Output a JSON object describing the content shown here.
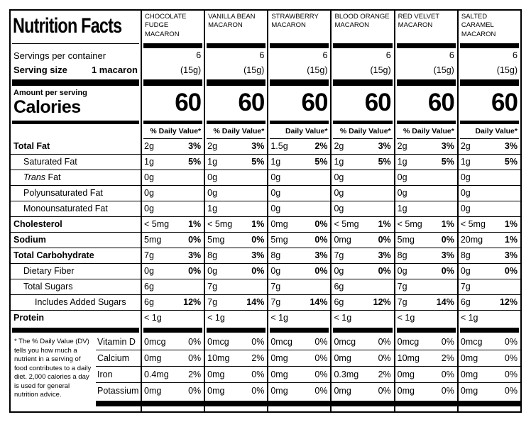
{
  "label": {
    "title": "Nutrition Facts",
    "servings_label": "Servings per container",
    "serving_size_label": "Serving size",
    "serving_size_value": "1 macaron",
    "amount_label": "Amount per serving",
    "calories_label": "Calories",
    "footnote": "* The % Daily Value (DV) tells you how much a nutrient in a serving of food contributes to a daily diet. 2,000 calories a day is used for general nutrition advice."
  },
  "nutrients": {
    "total_fat": "Total Fat",
    "sat_fat": "Saturated Fat",
    "trans_prefix": "Trans",
    "trans_suffix": " Fat",
    "poly_fat": "Polyunsaturated Fat",
    "mono_fat": "Monounsaturated Fat",
    "chol": "Cholesterol",
    "sodium": "Sodium",
    "carb": "Total Carbohydrate",
    "fiber": "Dietary Fiber",
    "sugars": "Total Sugars",
    "added_sugars": "Includes Added Sugars",
    "protein": "Protein",
    "vitd": "Vitamin D",
    "calcium": "Calcium",
    "iron": "Iron",
    "potassium": "Potassium"
  },
  "products": [
    {
      "name": "CHOCOLATE FUDGE MACARON",
      "servings": "6",
      "weight": "(15g)",
      "calories": "60",
      "dv_header": "% Daily Value*",
      "total_fat": "2g",
      "total_fat_dv": "3%",
      "sat_fat": "1g",
      "sat_fat_dv": "5%",
      "trans_fat": "0g",
      "poly_fat": "0g",
      "mono_fat": "0g",
      "chol": "< 5mg",
      "chol_dv": "1%",
      "sodium": "5mg",
      "sodium_dv": "0%",
      "carb": "7g",
      "carb_dv": "3%",
      "fiber": "0g",
      "fiber_dv": "0%",
      "sugars": "6g",
      "added_sugars": "6g",
      "added_sugars_dv": "12%",
      "protein": "< 1g",
      "vitd": "0mcg",
      "vitd_dv": "0%",
      "calcium": "0mg",
      "calcium_dv": "0%",
      "iron": "0.4mg",
      "iron_dv": "2%",
      "potassium": "0mg",
      "potassium_dv": "0%"
    },
    {
      "name": "VANILLA BEAN MACARON",
      "servings": "6",
      "weight": "(15g)",
      "calories": "60",
      "dv_header": "% Daily Value*",
      "total_fat": "2g",
      "total_fat_dv": "3%",
      "sat_fat": "1g",
      "sat_fat_dv": "5%",
      "trans_fat": "0g",
      "poly_fat": "0g",
      "mono_fat": "1g",
      "chol": "< 5mg",
      "chol_dv": "1%",
      "sodium": "5mg",
      "sodium_dv": "0%",
      "carb": "8g",
      "carb_dv": "3%",
      "fiber": "0g",
      "fiber_dv": "0%",
      "sugars": "7g",
      "added_sugars": "7g",
      "added_sugars_dv": "14%",
      "protein": "< 1g",
      "vitd": "0mcg",
      "vitd_dv": "0%",
      "calcium": "10mg",
      "calcium_dv": "2%",
      "iron": "0mg",
      "iron_dv": "0%",
      "potassium": "0mg",
      "potassium_dv": "0%"
    },
    {
      "name": "STRAWBERRY MACARON",
      "servings": "6",
      "weight": "(15g)",
      "calories": "60",
      "dv_header": "Daily Value*",
      "total_fat": "1.5g",
      "total_fat_dv": "2%",
      "sat_fat": "1g",
      "sat_fat_dv": "5%",
      "trans_fat": "0g",
      "poly_fat": "0g",
      "mono_fat": "0g",
      "chol": "0mg",
      "chol_dv": "0%",
      "sodium": "5mg",
      "sodium_dv": "0%",
      "carb": "8g",
      "carb_dv": "3%",
      "fiber": "0g",
      "fiber_dv": "0%",
      "sugars": "7g",
      "added_sugars": "7g",
      "added_sugars_dv": "14%",
      "protein": "< 1g",
      "vitd": "0mcg",
      "vitd_dv": "0%",
      "calcium": "0mg",
      "calcium_dv": "0%",
      "iron": "0mg",
      "iron_dv": "0%",
      "potassium": "0mg",
      "potassium_dv": "0%"
    },
    {
      "name": "BLOOD ORANGE MACARON",
      "servings": "6",
      "weight": "(15g)",
      "calories": "60",
      "dv_header": "% Daily Value*",
      "total_fat": "2g",
      "total_fat_dv": "3%",
      "sat_fat": "1g",
      "sat_fat_dv": "5%",
      "trans_fat": "0g",
      "poly_fat": "0g",
      "mono_fat": "0g",
      "chol": "< 5mg",
      "chol_dv": "1%",
      "sodium": "0mg",
      "sodium_dv": "0%",
      "carb": "7g",
      "carb_dv": "3%",
      "fiber": "0g",
      "fiber_dv": "0%",
      "sugars": "6g",
      "added_sugars": "6g",
      "added_sugars_dv": "12%",
      "protein": "< 1g",
      "vitd": "0mcg",
      "vitd_dv": "0%",
      "calcium": "0mg",
      "calcium_dv": "0%",
      "iron": "0.3mg",
      "iron_dv": "2%",
      "potassium": "0mg",
      "potassium_dv": "0%"
    },
    {
      "name": "RED VELVET MACARON",
      "servings": "6",
      "weight": "(15g)",
      "calories": "60",
      "dv_header": "% Daily Value*",
      "total_fat": "2g",
      "total_fat_dv": "3%",
      "sat_fat": "1g",
      "sat_fat_dv": "5%",
      "trans_fat": "0g",
      "poly_fat": "0g",
      "mono_fat": "1g",
      "chol": "< 5mg",
      "chol_dv": "1%",
      "sodium": "5mg",
      "sodium_dv": "0%",
      "carb": "8g",
      "carb_dv": "3%",
      "fiber": "0g",
      "fiber_dv": "0%",
      "sugars": "7g",
      "added_sugars": "7g",
      "added_sugars_dv": "14%",
      "protein": "< 1g",
      "vitd": "0mcg",
      "vitd_dv": "0%",
      "calcium": "10mg",
      "calcium_dv": "2%",
      "iron": "0mg",
      "iron_dv": "0%",
      "potassium": "0mg",
      "potassium_dv": "0%"
    },
    {
      "name": "SALTED CARAMEL MACARON",
      "servings": "6",
      "weight": "(15g)",
      "calories": "60",
      "dv_header": "Daily Value*",
      "total_fat": "2g",
      "total_fat_dv": "3%",
      "sat_fat": "1g",
      "sat_fat_dv": "5%",
      "trans_fat": "0g",
      "poly_fat": "0g",
      "mono_fat": "0g",
      "chol": "< 5mg",
      "chol_dv": "1%",
      "sodium": "20mg",
      "sodium_dv": "1%",
      "carb": "8g",
      "carb_dv": "3%",
      "fiber": "0g",
      "fiber_dv": "0%",
      "sugars": "7g",
      "added_sugars": "6g",
      "added_sugars_dv": "12%",
      "protein": "< 1g",
      "vitd": "0mcg",
      "vitd_dv": "0%",
      "calcium": "0mg",
      "calcium_dv": "0%",
      "iron": "0mg",
      "iron_dv": "0%",
      "potassium": "0mg",
      "potassium_dv": "0%"
    }
  ]
}
